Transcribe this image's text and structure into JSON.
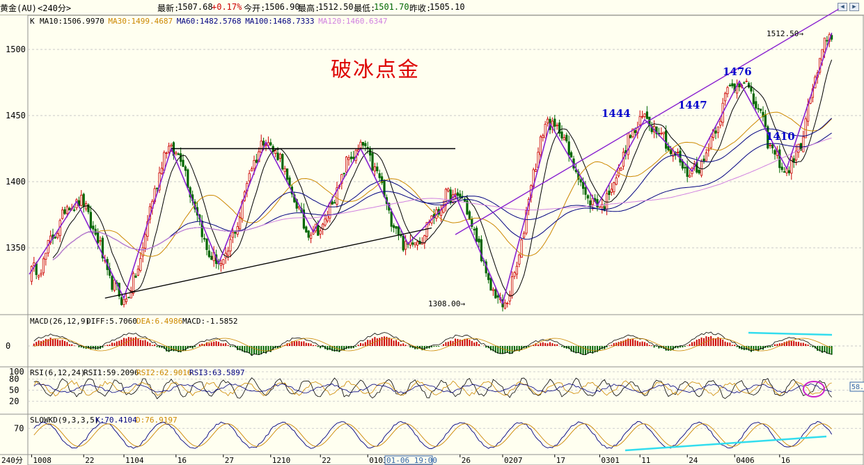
{
  "header": {
    "instrument": "黄金(AU)",
    "period": "<240分>",
    "latest_label": "最新:",
    "latest_value": "1507.68",
    "change": "+0.17%",
    "open_label": "今开:",
    "open_value": "1506.90",
    "high_label": "最高:",
    "high_value": "1512.50",
    "low_label": "最低:",
    "low_value": "1501.70",
    "prev_label": "昨收:",
    "prev_value": "1505.10",
    "nav_left_icon": "arrow-left-icon",
    "nav_right_icon": "arrow-right-icon"
  },
  "main_panel": {
    "indicator_prefix": "K",
    "ma_legend": [
      {
        "label": "MA10:1506.9970",
        "color": "#000000"
      },
      {
        "label": "MA30:1499.4687",
        "color": "#cc8800"
      },
      {
        "label": "MA60:1482.5768",
        "color": "#000080"
      },
      {
        "label": "MA100:1468.7333",
        "color": "#000080"
      },
      {
        "label": "MA120:1460.6347",
        "color": "#d080e0"
      }
    ],
    "title_annotation": "破冰点金",
    "annotations": [
      "1444",
      "1447",
      "1476",
      "1410"
    ],
    "max_label": "1512.50",
    "min_label": "1308.00",
    "y_ticks": [
      "1500",
      "1450",
      "1400",
      "1350"
    ]
  },
  "macd_panel": {
    "legend": "MACD(26,12,9)",
    "diff": "DIFF:5.7060",
    "dea": "DEA:6.4986",
    "macd": "MACD:-1.5852",
    "y_ticks": [
      "0"
    ]
  },
  "rsi_panel": {
    "legend": "RSI(6,12,24)",
    "rsi1": "RSI1:59.2096",
    "rsi2": "RSI2:62.9016",
    "rsi3": "RSI3:63.5897",
    "y_ticks": [
      "100",
      "80",
      "50",
      "20"
    ],
    "right_value": "58."
  },
  "kd_panel": {
    "legend": "SLOWKD(9,3,3,5)",
    "k": "K:70.4104",
    "d": "D:76.9197",
    "y_ticks": [
      "70"
    ]
  },
  "x_axis": {
    "period_label": "240分",
    "ticks": [
      "1008",
      "22",
      "1104",
      "16",
      "27",
      "1210",
      "22",
      "0103",
      "26",
      "0207",
      "17",
      "0301",
      "11",
      "24",
      "0406",
      "16"
    ],
    "cursor_label": "01-06 19:00"
  },
  "colors": {
    "background": "#fffff0",
    "up": "#cc0000",
    "down": "#006600",
    "pattern_line": "#8820d0",
    "annotation_blue": "#0000cc",
    "title_red": "#dd0000",
    "cyan_line": "#33ddee"
  },
  "chart_data": {
    "type": "candlestick",
    "y_range": [
      1300,
      1530
    ],
    "x_ticks": [
      "1008",
      "22",
      "1104",
      "16",
      "27",
      "1210",
      "22",
      "0103",
      "26",
      "0207",
      "17",
      "0301",
      "11",
      "24",
      "0406",
      "16"
    ],
    "pivots": [
      1330,
      1385,
      1312,
      1425,
      1338,
      1430,
      1362,
      1425,
      1353,
      1390,
      1308,
      1444,
      1382,
      1447,
      1408,
      1476,
      1410,
      1512.5
    ],
    "last": {
      "latest": 1507.68,
      "open": 1506.9,
      "high": 1512.5,
      "low": 1501.7,
      "prev_close": 1505.1
    },
    "resistance": 1425,
    "moving_averages": {
      "MA10": 1506.997,
      "MA30": 1499.4687,
      "MA60": 1482.5768,
      "MA100": 1468.7333,
      "MA120": 1460.6347
    },
    "indicators": {
      "MACD": {
        "DIFF": 5.706,
        "DEA": 6.4986,
        "MACD": -1.5852
      },
      "RSI": {
        "RSI1": 59.2096,
        "RSI2": 62.9016,
        "RSI3": 63.5897
      },
      "SLOWKD": {
        "K": 70.4104,
        "D": 76.9197
      }
    }
  }
}
